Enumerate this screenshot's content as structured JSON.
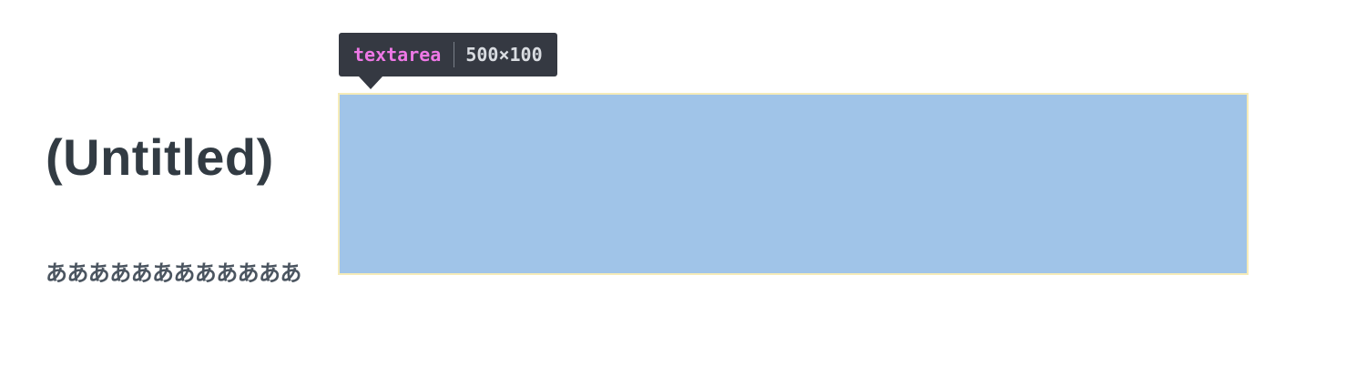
{
  "page": {
    "title": "(Untitled)",
    "body_text": "ああああああああああああ"
  },
  "inspector": {
    "element_tag": "textarea",
    "element_size": "500×100",
    "highlight_color": "#a0c4e8",
    "tag_color": "#ee78e6",
    "tooltip_background": "#353942"
  }
}
